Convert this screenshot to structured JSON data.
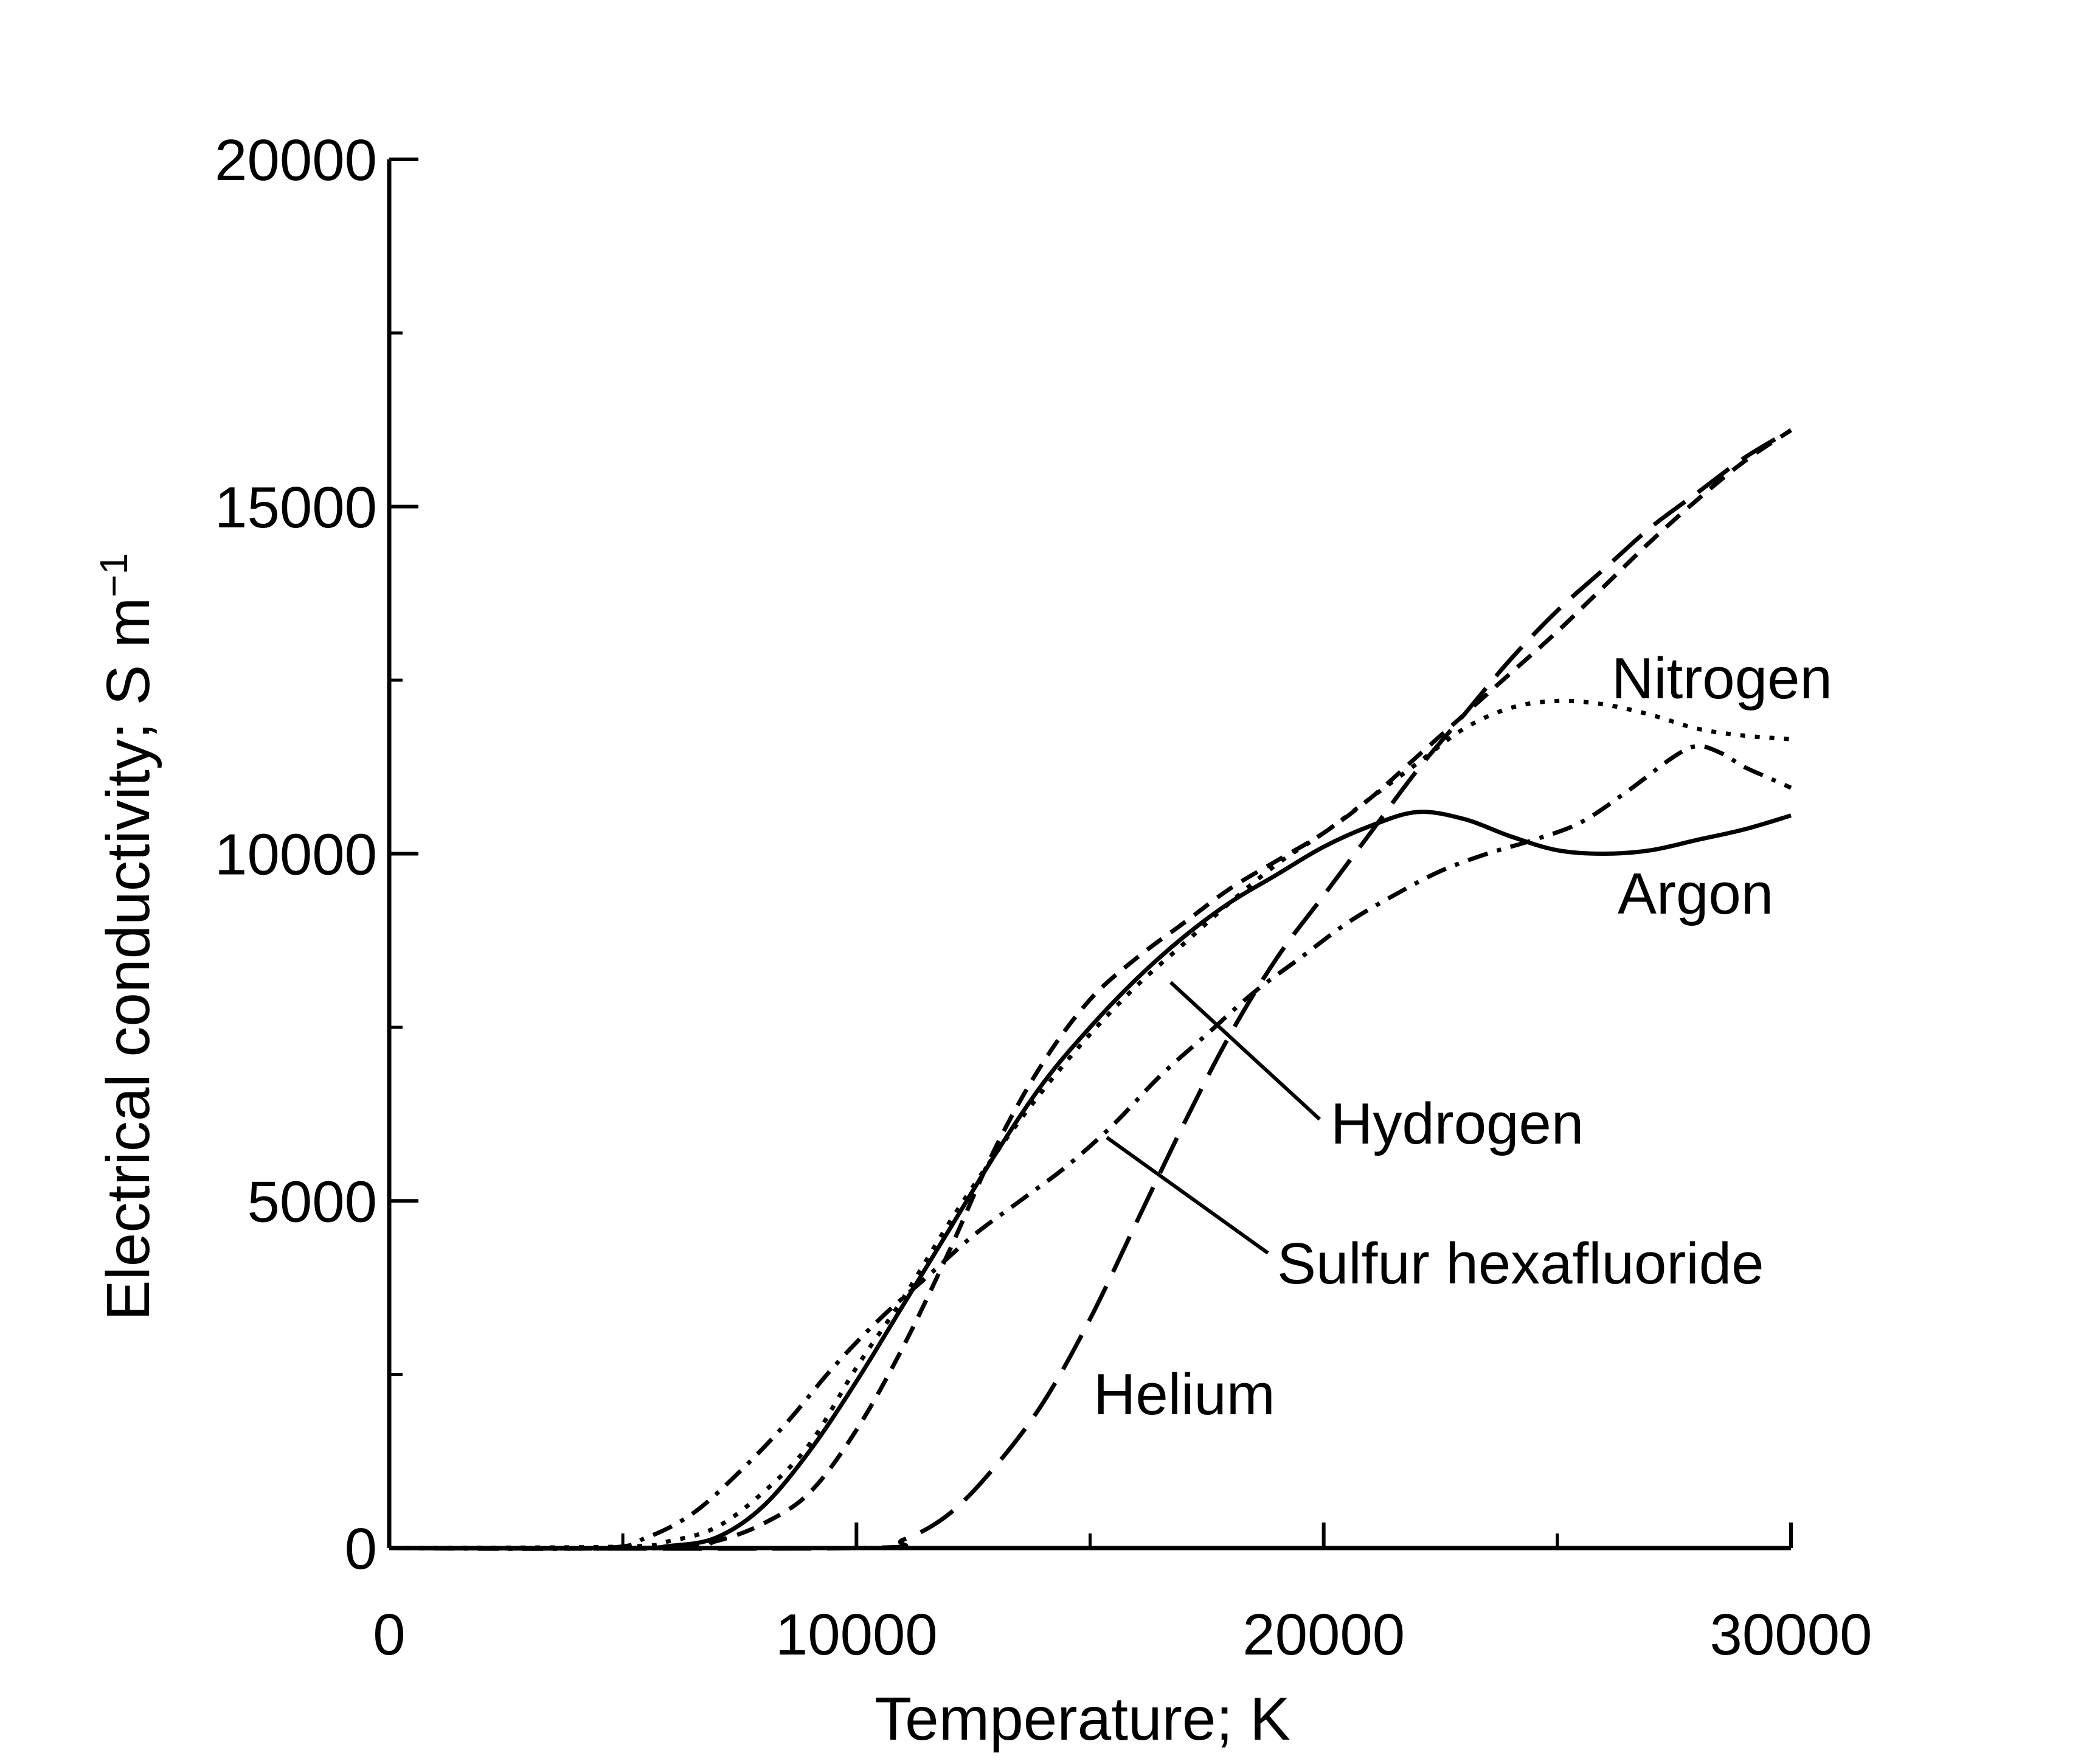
{
  "chart_data": {
    "type": "line",
    "title": "",
    "xlabel": "Temperature; K",
    "ylabel": "Electrical conductivity; S m",
    "ylabel_superscript": "−1",
    "xlim": [
      0,
      30000
    ],
    "ylim": [
      0,
      20000
    ],
    "x_ticks": [
      {
        "value": 0,
        "label": "0"
      },
      {
        "value": 10000,
        "label": "10000"
      },
      {
        "value": 20000,
        "label": "20000"
      },
      {
        "value": 30000,
        "label": "30000"
      }
    ],
    "x_minor_ticks": [
      5000,
      15000,
      25000
    ],
    "y_ticks": [
      {
        "value": 0,
        "label": "0"
      },
      {
        "value": 5000,
        "label": "5000"
      },
      {
        "value": 10000,
        "label": "10000"
      },
      {
        "value": 15000,
        "label": "15000"
      },
      {
        "value": 20000,
        "label": "20000"
      }
    ],
    "y_minor_ticks": [
      2500,
      7500,
      12500,
      17500
    ],
    "grid": false,
    "legend": "none",
    "series": [
      {
        "name": "Argon",
        "style": "solid",
        "x": [
          0,
          5000,
          6000,
          7000,
          8000,
          9000,
          10000,
          11000,
          12000,
          13000,
          14000,
          15000,
          16000,
          17000,
          18000,
          19000,
          20000,
          21000,
          22000,
          23000,
          24000,
          25000,
          26000,
          27000,
          28000,
          29000,
          30000
        ],
        "y": [
          0,
          0,
          30,
          150,
          600,
          1400,
          2400,
          3500,
          4600,
          5700,
          6700,
          7500,
          8200,
          8800,
          9300,
          9700,
          10100,
          10400,
          10600,
          10500,
          10250,
          10050,
          10000,
          10050,
          10200,
          10350,
          10550
        ]
      },
      {
        "name": "Nitrogen",
        "style": "dotted",
        "x": [
          0,
          5000,
          6000,
          7000,
          8000,
          9000,
          10000,
          11000,
          12000,
          13000,
          14000,
          15000,
          16000,
          17000,
          18000,
          19000,
          20000,
          21000,
          22000,
          23000,
          24000,
          25000,
          26000,
          27000,
          28000,
          29000,
          30000
        ],
        "y": [
          0,
          20,
          100,
          300,
          800,
          1500,
          2600,
          3600,
          4700,
          5700,
          6600,
          7400,
          8100,
          8700,
          9300,
          9850,
          10300,
          10800,
          11300,
          11800,
          12100,
          12200,
          12150,
          12000,
          11800,
          11700,
          11650
        ]
      },
      {
        "name": "Hydrogen",
        "style": "short-dash",
        "x": [
          0,
          6000,
          7000,
          8000,
          9000,
          10000,
          11000,
          12000,
          13000,
          14000,
          15000,
          16000,
          17000,
          18000,
          19000,
          20000,
          21000,
          22000,
          23000,
          24000,
          25000,
          26000,
          27000,
          28000,
          29000,
          30000
        ],
        "y": [
          0,
          0,
          100,
          350,
          800,
          1700,
          2900,
          4300,
          5800,
          7000,
          7900,
          8500,
          9000,
          9500,
          9900,
          10300,
          10800,
          11400,
          12000,
          12600,
          13200,
          13850,
          14500,
          15100,
          15650,
          16100
        ]
      },
      {
        "name": "Sulfur hexafluoride",
        "style": "dash-dot",
        "x": [
          0,
          4500,
          5500,
          6500,
          7500,
          8500,
          9500,
          10500,
          11500,
          12500,
          13500,
          14500,
          15500,
          16500,
          17500,
          18500,
          19500,
          20500,
          21500,
          22500,
          23500,
          24500,
          25500,
          26500,
          27500,
          28000,
          28500,
          29000,
          29500,
          30000
        ],
        "y": [
          0,
          0,
          150,
          500,
          1100,
          1800,
          2600,
          3300,
          3900,
          4500,
          5000,
          5500,
          6100,
          6800,
          7400,
          8000,
          8500,
          9000,
          9400,
          9750,
          10000,
          10200,
          10450,
          10900,
          11400,
          11550,
          11450,
          11250,
          11100,
          10950
        ]
      },
      {
        "name": "Helium",
        "style": "long-dash",
        "x": [
          0,
          10000,
          11000,
          12000,
          13000,
          14000,
          15000,
          16000,
          17000,
          18000,
          19000,
          20000,
          21000,
          22000,
          23000,
          24000,
          25000,
          26000,
          27000,
          28000,
          29000,
          30000
        ],
        "y": [
          0,
          0,
          120,
          500,
          1200,
          2100,
          3300,
          4700,
          6100,
          7400,
          8500,
          9400,
          10300,
          11200,
          12000,
          12800,
          13500,
          14100,
          14700,
          15200,
          15700,
          16100
        ]
      }
    ],
    "annotations": [
      {
        "text": "Nitrogen",
        "series": "Nitrogen"
      },
      {
        "text": "Argon",
        "series": "Argon"
      },
      {
        "text": "Hydrogen",
        "series": "Hydrogen"
      },
      {
        "text": "Sulfur hexafluoride",
        "series": "Sulfur hexafluoride"
      },
      {
        "text": "Helium",
        "series": "Helium"
      }
    ]
  }
}
